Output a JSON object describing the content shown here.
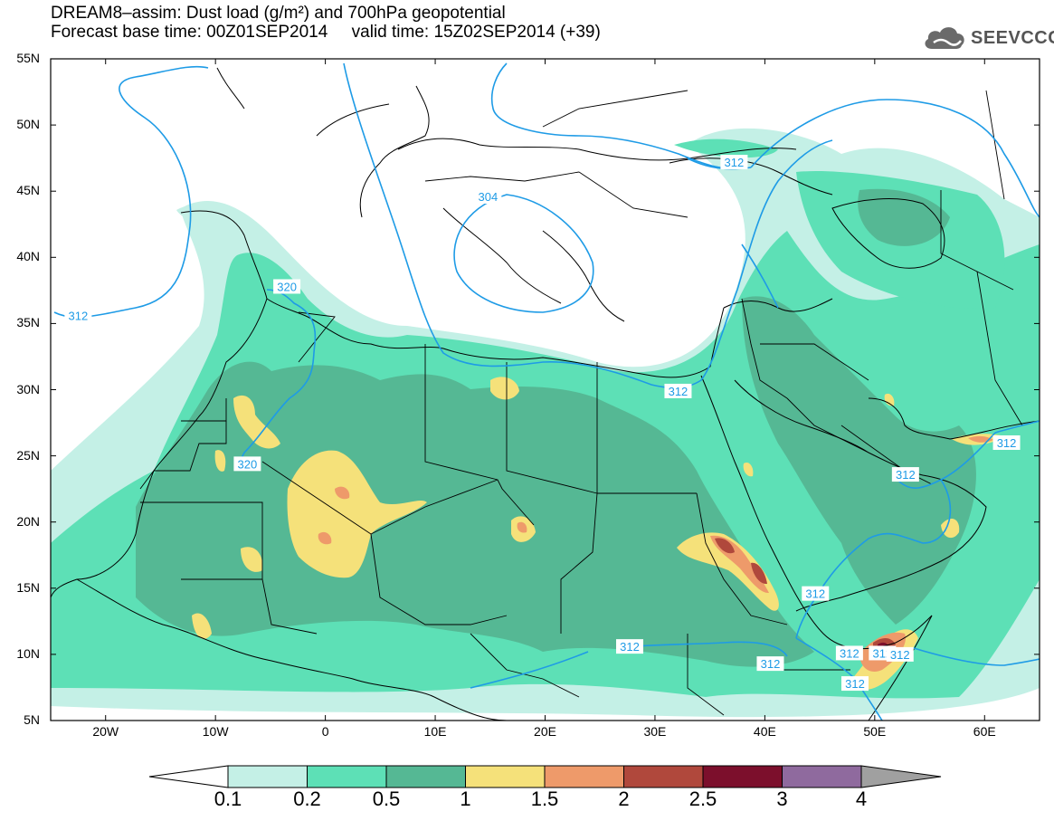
{
  "title_line1": "DREAM8–assim: Dust load (g/m²) and 700hPa geopotential",
  "title_line2": "Forecast base time: 00Z01SEP2014     valid time: 15Z02SEP2014 (+39)",
  "logo_text": "SEEVCCC",
  "lat_labels": [
    "55N",
    "50N",
    "45N",
    "40N",
    "35N",
    "30N",
    "25N",
    "20N",
    "15N",
    "10N",
    "5N"
  ],
  "lon_labels": [
    "20W",
    "10W",
    "0",
    "10E",
    "20E",
    "30E",
    "40E",
    "50E",
    "60E"
  ],
  "colorbar": {
    "ticks": [
      "0.1",
      "0.2",
      "0.5",
      "1",
      "1.5",
      "2",
      "2.5",
      "3",
      "4"
    ],
    "colors": [
      "#c4f0e6",
      "#5de0b6",
      "#55b894",
      "#f5e17a",
      "#ee9a6a",
      "#b0483c",
      "#7c0f2c",
      "#8f6a9e",
      "#a0a0a0"
    ]
  },
  "contour_labels": [
    {
      "text": "312",
      "lon": -22.5,
      "lat": 35.6
    },
    {
      "text": "320",
      "lon": -3.5,
      "lat": 37.8
    },
    {
      "text": "320",
      "lon": -7.1,
      "lat": 24.4
    },
    {
      "text": "304",
      "lon": 14.8,
      "lat": 44.6
    },
    {
      "text": "312",
      "lon": 37.2,
      "lat": 47.2
    },
    {
      "text": "312",
      "lon": 32.1,
      "lat": 29.9
    },
    {
      "text": "312",
      "lon": 62.0,
      "lat": 26.0
    },
    {
      "text": "312",
      "lon": 52.8,
      "lat": 23.6
    },
    {
      "text": "312",
      "lon": 44.6,
      "lat": 14.6
    },
    {
      "text": "312",
      "lon": 27.7,
      "lat": 10.6
    },
    {
      "text": "312",
      "lon": 47.7,
      "lat": 10.1
    },
    {
      "text": "312",
      "lon": 50.7,
      "lat": 10.1
    },
    {
      "text": "312",
      "lon": 52.3,
      "lat": 10.0
    },
    {
      "text": "312",
      "lon": 40.5,
      "lat": 9.3
    },
    {
      "text": "312",
      "lon": 48.2,
      "lat": 7.8
    }
  ]
}
